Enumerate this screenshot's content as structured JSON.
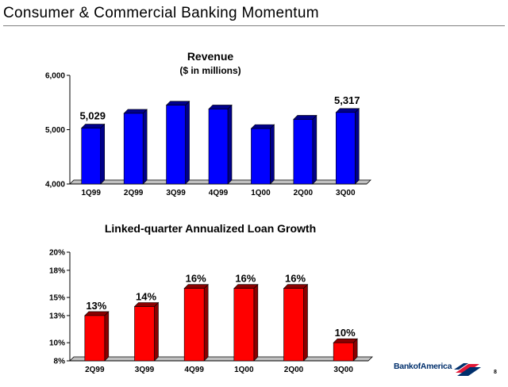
{
  "slide": {
    "title": "Consumer & Commercial Banking Momentum",
    "page_number": "8",
    "logo_text": "BankofAmerica"
  },
  "colors": {
    "revenue_bar": "#0000ff",
    "revenue_bar_dark": "#00008a",
    "loan_bar": "#ff0000",
    "loan_bar_dark": "#8a0000",
    "logo_blue": "#002f6c",
    "logo_red": "#e31837"
  },
  "chart_data": [
    {
      "id": "revenue",
      "type": "bar",
      "title": "Revenue",
      "subtitle": "($ in millions)",
      "categories": [
        "1Q99",
        "2Q99",
        "3Q99",
        "4Q99",
        "1Q00",
        "2Q00",
        "3Q00"
      ],
      "values": [
        5029,
        5300,
        5450,
        5380,
        5020,
        5190,
        5317
      ],
      "data_labels": [
        "5,029",
        "",
        "",
        "",
        "",
        "",
        "5,317"
      ],
      "ylim": [
        4000,
        6000
      ],
      "yticks": [
        4000,
        5000,
        6000
      ],
      "ytick_labels": [
        "4,000",
        "5,000",
        "6,000"
      ],
      "grid": false,
      "legend": "none"
    },
    {
      "id": "loans",
      "type": "bar",
      "title": "Linked-quarter Annualized Loan Growth",
      "categories": [
        "2Q99",
        "3Q99",
        "4Q99",
        "1Q00",
        "2Q00",
        "3Q00"
      ],
      "values": [
        13,
        14,
        16,
        16,
        16,
        10
      ],
      "data_labels": [
        "13%",
        "14%",
        "16%",
        "16%",
        "16%",
        "10%"
      ],
      "ylim": [
        8,
        20
      ],
      "yticks": [
        8,
        10,
        13,
        15,
        18,
        20
      ],
      "ytick_labels": [
        "8%",
        "10%",
        "13%",
        "15%",
        "18%",
        "20%"
      ],
      "grid": false,
      "legend": "none"
    }
  ]
}
